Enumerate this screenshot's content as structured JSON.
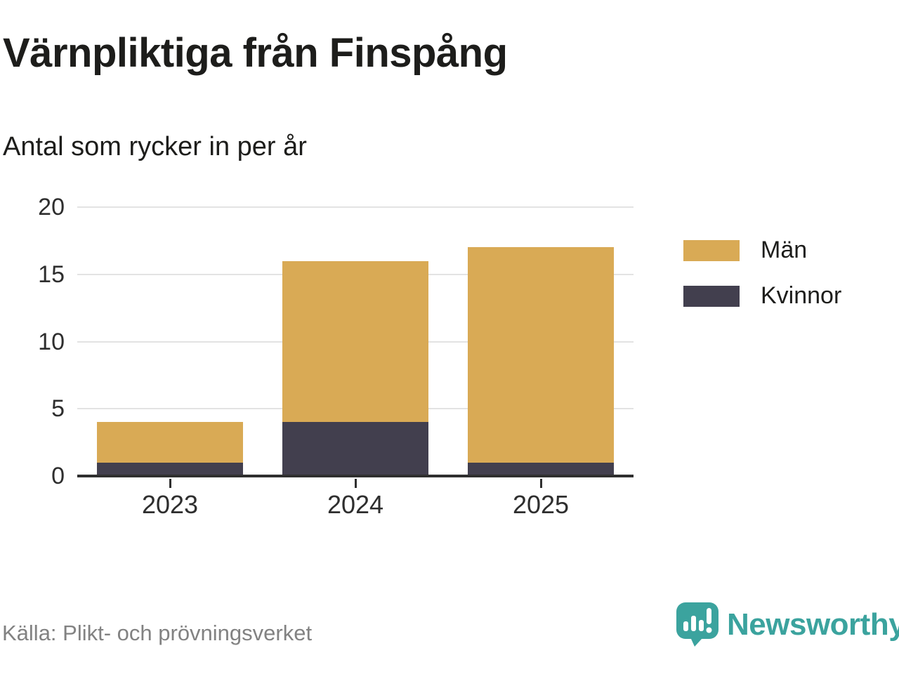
{
  "title": "Värnpliktiga från Finspång",
  "subtitle": "Antal som rycker in per år",
  "source": "Källa: Plikt- och prövningsverket",
  "branding": {
    "name": "Newsworthy",
    "logo_color": "#3ba39e"
  },
  "colors": {
    "men": "#d9aa55",
    "women": "#423f4e",
    "grid": "#e3e3e3",
    "axis": "#2f2f2f",
    "text": "#1d1d1b",
    "muted": "#828282"
  },
  "chart_data": {
    "type": "bar",
    "stacked": true,
    "title": "Värnpliktiga från Finspång",
    "subtitle": "Antal som rycker in per år",
    "categories": [
      "2023",
      "2024",
      "2025"
    ],
    "series": [
      {
        "name": "Män",
        "color": "#d9aa55",
        "values": [
          3,
          12,
          16
        ]
      },
      {
        "name": "Kvinnor",
        "color": "#423f4e",
        "values": [
          1,
          4,
          1
        ]
      }
    ],
    "stack_bottom_to_top": [
      "Kvinnor",
      "Män"
    ],
    "totals": [
      4,
      16,
      17
    ],
    "xlabel": "",
    "ylabel": "",
    "yticks": [
      0,
      5,
      10,
      15,
      20
    ],
    "ylim": [
      0,
      20
    ],
    "grid": "horizontal",
    "legend_position": "right-outside"
  }
}
